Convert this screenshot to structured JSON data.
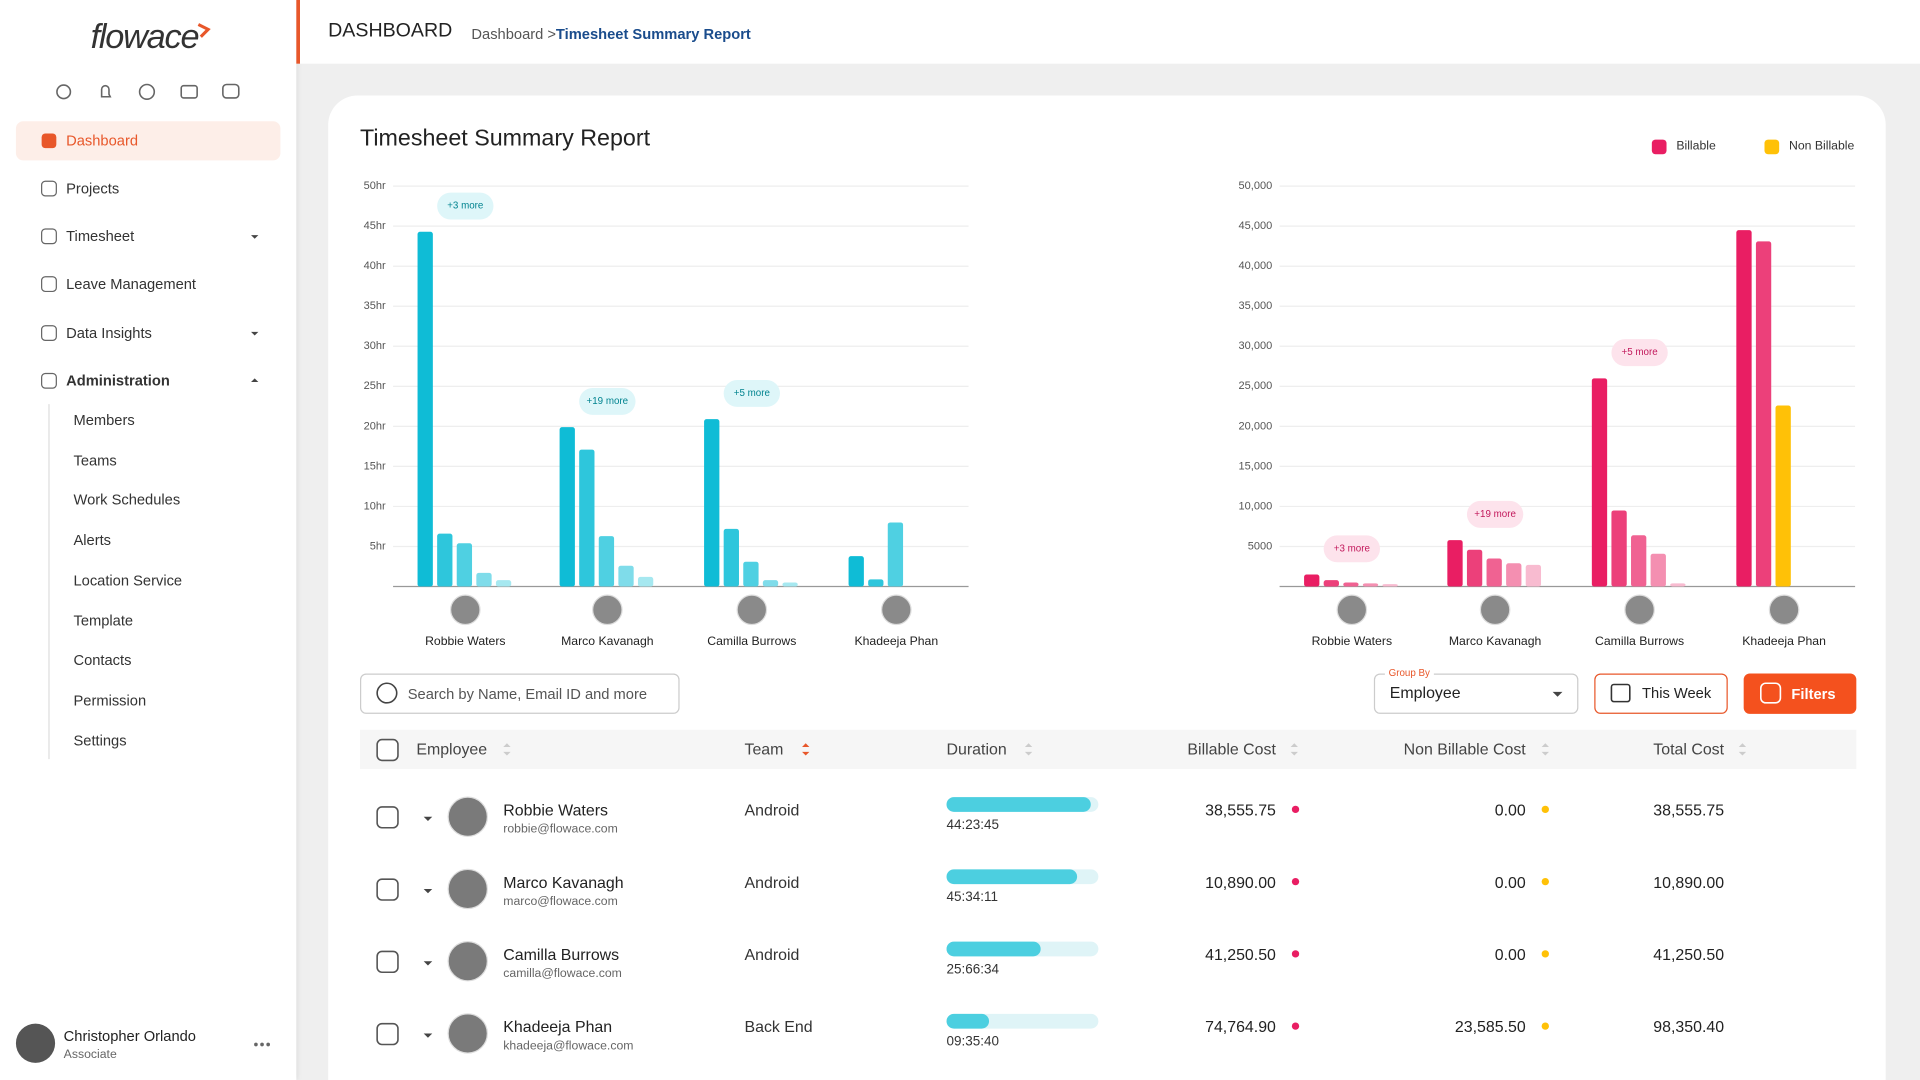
{
  "logo": "flowace",
  "header": {
    "title": "DASHBOARD",
    "breadcrumb": [
      "Dashboard >",
      "Timesheet Summary Report"
    ]
  },
  "sidebar": {
    "nav": [
      {
        "label": "Dashboard",
        "active": true
      },
      {
        "label": "Projects"
      },
      {
        "label": "Timesheet",
        "caret": "down"
      },
      {
        "label": "Leave Management"
      },
      {
        "label": "Data Insights",
        "caret": "down"
      },
      {
        "label": "Administration",
        "caret": "up"
      }
    ],
    "admin_items": [
      "Members",
      "Teams",
      "Work Schedules",
      "Alerts",
      "Location Service",
      "Template",
      "Contacts",
      "Permission",
      "Settings"
    ],
    "user": {
      "name": "Christopher Orlando",
      "role": "Associate"
    }
  },
  "report": {
    "title": "Timesheet Summary Report",
    "legend": [
      {
        "name": "Billable",
        "color": "#e91e63"
      },
      {
        "name": "Non Billable",
        "color": "#ffc107"
      }
    ],
    "hours_chart": {
      "type": "bar",
      "ylim": [
        0,
        50
      ],
      "yticks": [
        {
          "value": 5,
          "label": "5hr"
        },
        {
          "value": 10,
          "label": "10hr"
        },
        {
          "value": 15,
          "label": "15hr"
        },
        {
          "value": 20,
          "label": "20hr"
        },
        {
          "value": 25,
          "label": "25hr"
        },
        {
          "value": 30,
          "label": "30hr"
        },
        {
          "value": 35,
          "label": "35hr"
        },
        {
          "value": 40,
          "label": "40hr"
        },
        {
          "value": 45,
          "label": "45hr"
        },
        {
          "value": 50,
          "label": "50hr"
        }
      ],
      "groups": [
        {
          "name": "Robbie Waters",
          "more": "+3 more",
          "values": [
            44.3,
            6.6,
            5.4,
            1.7,
            0.8
          ],
          "colors": [
            "#0fbcd6",
            "#2ec6dc",
            "#4fd0e2",
            "#7fdcea",
            "#a6e8f0"
          ]
        },
        {
          "name": "Marco Kavanagh",
          "more": "+19 more",
          "values": [
            19.9,
            17.1,
            6.3,
            2.6,
            1.2
          ],
          "colors": [
            "#0fbcd6",
            "#2ec6dc",
            "#4fd0e2",
            "#7fdcea",
            "#a6e8f0"
          ]
        },
        {
          "name": "Camilla Burrows",
          "more": "+5 more",
          "values": [
            20.9,
            7.2,
            3.1,
            0.8,
            0.5
          ],
          "colors": [
            "#0fbcd6",
            "#2ec6dc",
            "#4fd0e2",
            "#7fdcea",
            "#a6e8f0"
          ]
        },
        {
          "name": "Khadeeja Phan",
          "values": [
            3.8,
            0.9,
            8.0
          ],
          "colors": [
            "#0fbcd6",
            "#2ec6dc",
            "#4fd0e2"
          ]
        }
      ]
    },
    "cost_chart": {
      "type": "bar",
      "ylim": [
        0,
        50000
      ],
      "yticks": [
        5000,
        {
          "value": 10000,
          "label": "10,000"
        },
        {
          "value": 15000,
          "label": "15,000"
        },
        {
          "value": 20000,
          "label": "20,000"
        },
        {
          "value": 25000,
          "label": "25,000"
        },
        {
          "value": 30000,
          "label": "30,000"
        },
        {
          "value": 35000,
          "label": "35,000"
        },
        {
          "value": 40000,
          "label": "40,000"
        },
        {
          "value": 45000,
          "label": "45,000"
        },
        {
          "value": 50000,
          "label": "50,000"
        }
      ],
      "groups": [
        {
          "name": "Robbie Waters",
          "more": "+3 more",
          "values": [
            1500,
            800,
            500,
            400,
            300
          ],
          "colors": [
            "#e91e63",
            "#ec407a",
            "#f06292",
            "#f48fb1",
            "#f8bbd0"
          ]
        },
        {
          "name": "Marco Kavanagh",
          "more": "+19 more",
          "values": [
            5800,
            4600,
            3500,
            2900,
            2700
          ],
          "colors": [
            "#e91e63",
            "#ec407a",
            "#f06292",
            "#f48fb1",
            "#f8bbd0"
          ]
        },
        {
          "name": "Camilla Burrows",
          "more": "+5 more",
          "values": [
            26000,
            9500,
            6400,
            4100,
            400
          ],
          "colors": [
            "#e91e63",
            "#ec407a",
            "#f06292",
            "#f48fb1",
            "#f8bbd0"
          ]
        },
        {
          "name": "Khadeeja Phan",
          "values": [
            44500,
            43100,
            22600
          ],
          "colors": [
            "#e91e63",
            "#ec407a",
            "#ffc107"
          ]
        }
      ]
    }
  },
  "toolbar": {
    "search_placeholder": "Search by Name, Email ID and more",
    "group_by_label": "Group By",
    "group_by": "Employee",
    "period": "This Week",
    "filters": "Filters"
  },
  "table": {
    "columns": [
      "Employee",
      "Team",
      "Duration",
      "Billable Cost",
      "Non Billable Cost",
      "Total Cost"
    ],
    "rows": [
      {
        "name": "Robbie Waters",
        "email": "robbie@flowace.com",
        "team": "Android",
        "duration": "44:23:45",
        "progress": 95,
        "billable": "38,555.75",
        "non_billable": "0.00",
        "total": "38,555.75"
      },
      {
        "name": "Marco Kavanagh",
        "email": "marco@flowace.com",
        "team": "Android",
        "duration": "45:34:11",
        "progress": 86,
        "billable": "10,890.00",
        "non_billable": "0.00",
        "total": "10,890.00"
      },
      {
        "name": "Camilla Burrows",
        "email": "camilla@flowace.com",
        "team": "Android",
        "duration": "25:66:34",
        "progress": 62,
        "billable": "41,250.50",
        "non_billable": "0.00",
        "total": "41,250.50"
      },
      {
        "name": "Khadeeja Phan",
        "email": "khadeeja@flowace.com",
        "team": "Back End",
        "duration": "09:35:40",
        "progress": 28,
        "billable": "74,764.90",
        "non_billable": "23,585.50",
        "total": "98,350.40"
      }
    ]
  }
}
